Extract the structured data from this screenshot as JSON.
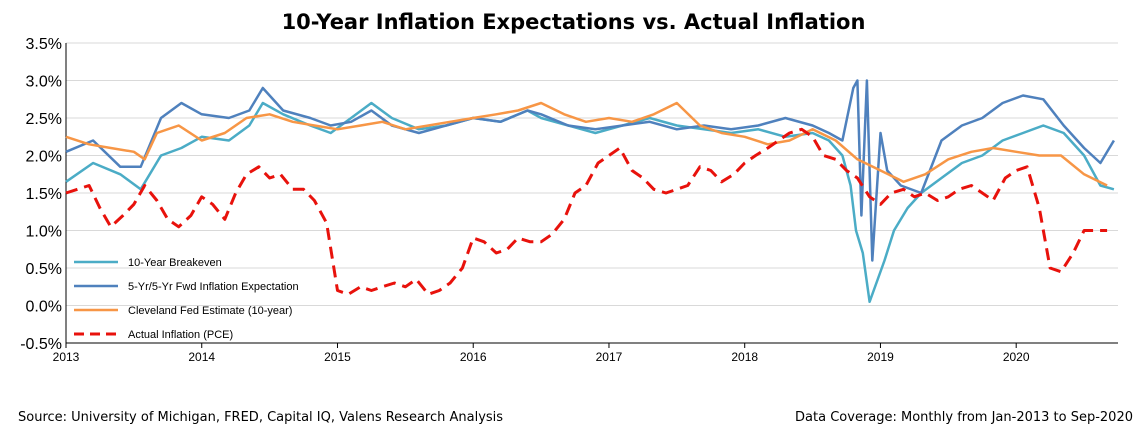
{
  "chart_data": {
    "type": "line",
    "title": "10-Year Inflation Expectations vs. Actual Inflation",
    "xlabel": "",
    "ylabel": "",
    "xlim": [
      2013.0,
      2020.75
    ],
    "ylim": [
      -0.5,
      3.5
    ],
    "x_ticks": [
      "2013",
      "2014",
      "2015",
      "2016",
      "2017",
      "2018",
      "2019",
      "2020"
    ],
    "y_ticks": [
      "3.5%",
      "3.0%",
      "2.5%",
      "2.0%",
      "1.5%",
      "1.0%",
      "0.5%",
      "0.0%",
      "-0.5%"
    ],
    "grid": "horizontal",
    "legend_position": "bottom-left",
    "series": [
      {
        "name": "10-Year Breakeven",
        "color": "#4bacc6",
        "style": "solid",
        "points": [
          [
            2013.0,
            1.65
          ],
          [
            2013.2,
            1.9
          ],
          [
            2013.4,
            1.75
          ],
          [
            2013.55,
            1.55
          ],
          [
            2013.7,
            2.0
          ],
          [
            2013.85,
            2.1
          ],
          [
            2014.0,
            2.25
          ],
          [
            2014.2,
            2.2
          ],
          [
            2014.35,
            2.4
          ],
          [
            2014.45,
            2.7
          ],
          [
            2014.6,
            2.55
          ],
          [
            2014.8,
            2.4
          ],
          [
            2014.95,
            2.3
          ],
          [
            2015.1,
            2.5
          ],
          [
            2015.25,
            2.7
          ],
          [
            2015.4,
            2.5
          ],
          [
            2015.6,
            2.35
          ],
          [
            2015.8,
            2.4
          ],
          [
            2016.0,
            2.5
          ],
          [
            2016.2,
            2.45
          ],
          [
            2016.4,
            2.6
          ],
          [
            2016.5,
            2.5
          ],
          [
            2016.7,
            2.4
          ],
          [
            2016.9,
            2.3
          ],
          [
            2017.1,
            2.4
          ],
          [
            2017.3,
            2.5
          ],
          [
            2017.5,
            2.4
          ],
          [
            2017.7,
            2.35
          ],
          [
            2017.9,
            2.3
          ],
          [
            2018.1,
            2.35
          ],
          [
            2018.3,
            2.25
          ],
          [
            2018.5,
            2.3
          ],
          [
            2018.62,
            2.2
          ],
          [
            2018.72,
            2.0
          ],
          [
            2018.78,
            1.6
          ],
          [
            2018.82,
            1.0
          ],
          [
            2018.87,
            0.7
          ],
          [
            2018.92,
            0.05
          ],
          [
            2018.97,
            0.3
          ],
          [
            2019.03,
            0.6
          ],
          [
            2019.1,
            1.0
          ],
          [
            2019.2,
            1.3
          ],
          [
            2019.3,
            1.5
          ],
          [
            2019.45,
            1.7
          ],
          [
            2019.6,
            1.9
          ],
          [
            2019.75,
            2.0
          ],
          [
            2019.9,
            2.2
          ],
          [
            2020.05,
            2.3
          ],
          [
            2020.2,
            2.4
          ],
          [
            2020.35,
            2.3
          ],
          [
            2020.5,
            2.0
          ],
          [
            2020.62,
            1.6
          ],
          [
            2020.72,
            1.55
          ]
        ]
      },
      {
        "name": "5-Yr/5-Yr Fwd Inflation Expectation",
        "color": "#4f81bd",
        "style": "solid",
        "points": [
          [
            2013.0,
            2.05
          ],
          [
            2013.2,
            2.2
          ],
          [
            2013.4,
            1.85
          ],
          [
            2013.55,
            1.85
          ],
          [
            2013.7,
            2.5
          ],
          [
            2013.85,
            2.7
          ],
          [
            2014.0,
            2.55
          ],
          [
            2014.2,
            2.5
          ],
          [
            2014.35,
            2.6
          ],
          [
            2014.45,
            2.9
          ],
          [
            2014.6,
            2.6
          ],
          [
            2014.8,
            2.5
          ],
          [
            2014.95,
            2.4
          ],
          [
            2015.1,
            2.45
          ],
          [
            2015.25,
            2.6
          ],
          [
            2015.4,
            2.4
          ],
          [
            2015.6,
            2.3
          ],
          [
            2015.8,
            2.4
          ],
          [
            2016.0,
            2.5
          ],
          [
            2016.2,
            2.45
          ],
          [
            2016.4,
            2.6
          ],
          [
            2016.5,
            2.55
          ],
          [
            2016.7,
            2.4
          ],
          [
            2016.9,
            2.35
          ],
          [
            2017.1,
            2.4
          ],
          [
            2017.3,
            2.45
          ],
          [
            2017.5,
            2.35
          ],
          [
            2017.7,
            2.4
          ],
          [
            2017.9,
            2.35
          ],
          [
            2018.1,
            2.4
          ],
          [
            2018.3,
            2.5
          ],
          [
            2018.5,
            2.4
          ],
          [
            2018.62,
            2.3
          ],
          [
            2018.72,
            2.2
          ],
          [
            2018.8,
            2.9
          ],
          [
            2018.83,
            3.0
          ],
          [
            2018.86,
            1.2
          ],
          [
            2018.9,
            3.0
          ],
          [
            2018.94,
            0.6
          ],
          [
            2019.0,
            2.3
          ],
          [
            2019.05,
            1.8
          ],
          [
            2019.15,
            1.6
          ],
          [
            2019.3,
            1.5
          ],
          [
            2019.45,
            2.2
          ],
          [
            2019.6,
            2.4
          ],
          [
            2019.75,
            2.5
          ],
          [
            2019.9,
            2.7
          ],
          [
            2020.05,
            2.8
          ],
          [
            2020.2,
            2.75
          ],
          [
            2020.35,
            2.4
          ],
          [
            2020.5,
            2.1
          ],
          [
            2020.62,
            1.9
          ],
          [
            2020.72,
            2.2
          ]
        ]
      },
      {
        "name": "Cleveland Fed Estimate (10-year)",
        "color": "#f79646",
        "style": "solid",
        "points": [
          [
            2013.0,
            2.25
          ],
          [
            2013.17,
            2.15
          ],
          [
            2013.33,
            2.1
          ],
          [
            2013.5,
            2.05
          ],
          [
            2013.58,
            1.95
          ],
          [
            2013.67,
            2.3
          ],
          [
            2013.83,
            2.4
          ],
          [
            2014.0,
            2.2
          ],
          [
            2014.17,
            2.3
          ],
          [
            2014.33,
            2.5
          ],
          [
            2014.5,
            2.55
          ],
          [
            2014.67,
            2.45
          ],
          [
            2014.83,
            2.4
          ],
          [
            2015.0,
            2.35
          ],
          [
            2015.17,
            2.4
          ],
          [
            2015.33,
            2.45
          ],
          [
            2015.5,
            2.35
          ],
          [
            2015.67,
            2.4
          ],
          [
            2015.83,
            2.45
          ],
          [
            2016.0,
            2.5
          ],
          [
            2016.17,
            2.55
          ],
          [
            2016.33,
            2.6
          ],
          [
            2016.5,
            2.7
          ],
          [
            2016.67,
            2.55
          ],
          [
            2016.83,
            2.45
          ],
          [
            2017.0,
            2.5
          ],
          [
            2017.17,
            2.45
          ],
          [
            2017.33,
            2.55
          ],
          [
            2017.5,
            2.7
          ],
          [
            2017.67,
            2.4
          ],
          [
            2017.83,
            2.3
          ],
          [
            2018.0,
            2.25
          ],
          [
            2018.17,
            2.15
          ],
          [
            2018.33,
            2.2
          ],
          [
            2018.5,
            2.35
          ],
          [
            2018.67,
            2.2
          ],
          [
            2018.83,
            1.95
          ],
          [
            2019.0,
            1.8
          ],
          [
            2019.17,
            1.65
          ],
          [
            2019.33,
            1.75
          ],
          [
            2019.5,
            1.95
          ],
          [
            2019.67,
            2.05
          ],
          [
            2019.83,
            2.1
          ],
          [
            2020.0,
            2.05
          ],
          [
            2020.17,
            2.0
          ],
          [
            2020.33,
            2.0
          ],
          [
            2020.5,
            1.75
          ],
          [
            2020.67,
            1.6
          ]
        ]
      },
      {
        "name": "Actual Inflation (PCE)",
        "color": "#e8120c",
        "style": "dashed",
        "points": [
          [
            2013.0,
            1.5
          ],
          [
            2013.17,
            1.6
          ],
          [
            2013.25,
            1.3
          ],
          [
            2013.33,
            1.05
          ],
          [
            2013.42,
            1.2
          ],
          [
            2013.5,
            1.35
          ],
          [
            2013.58,
            1.6
          ],
          [
            2013.67,
            1.4
          ],
          [
            2013.75,
            1.15
          ],
          [
            2013.83,
            1.05
          ],
          [
            2013.92,
            1.2
          ],
          [
            2014.0,
            1.45
          ],
          [
            2014.08,
            1.35
          ],
          [
            2014.17,
            1.15
          ],
          [
            2014.25,
            1.5
          ],
          [
            2014.33,
            1.75
          ],
          [
            2014.42,
            1.85
          ],
          [
            2014.5,
            1.7
          ],
          [
            2014.58,
            1.75
          ],
          [
            2014.67,
            1.55
          ],
          [
            2014.75,
            1.55
          ],
          [
            2014.83,
            1.4
          ],
          [
            2014.92,
            1.1
          ],
          [
            2015.0,
            0.2
          ],
          [
            2015.08,
            0.15
          ],
          [
            2015.17,
            0.25
          ],
          [
            2015.25,
            0.2
          ],
          [
            2015.33,
            0.25
          ],
          [
            2015.42,
            0.3
          ],
          [
            2015.5,
            0.25
          ],
          [
            2015.58,
            0.35
          ],
          [
            2015.67,
            0.15
          ],
          [
            2015.75,
            0.2
          ],
          [
            2015.83,
            0.3
          ],
          [
            2015.92,
            0.5
          ],
          [
            2016.0,
            0.9
          ],
          [
            2016.08,
            0.85
          ],
          [
            2016.17,
            0.7
          ],
          [
            2016.25,
            0.75
          ],
          [
            2016.33,
            0.9
          ],
          [
            2016.42,
            0.85
          ],
          [
            2016.5,
            0.85
          ],
          [
            2016.58,
            0.95
          ],
          [
            2016.67,
            1.15
          ],
          [
            2016.75,
            1.5
          ],
          [
            2016.83,
            1.6
          ],
          [
            2016.92,
            1.9
          ],
          [
            2017.0,
            2.0
          ],
          [
            2017.08,
            2.1
          ],
          [
            2017.17,
            1.8
          ],
          [
            2017.25,
            1.7
          ],
          [
            2017.33,
            1.55
          ],
          [
            2017.42,
            1.5
          ],
          [
            2017.5,
            1.55
          ],
          [
            2017.58,
            1.6
          ],
          [
            2017.67,
            1.85
          ],
          [
            2017.75,
            1.8
          ],
          [
            2017.83,
            1.65
          ],
          [
            2017.92,
            1.75
          ],
          [
            2018.0,
            1.9
          ],
          [
            2018.08,
            2.0
          ],
          [
            2018.17,
            2.1
          ],
          [
            2018.25,
            2.2
          ],
          [
            2018.33,
            2.3
          ],
          [
            2018.42,
            2.35
          ],
          [
            2018.5,
            2.25
          ],
          [
            2018.58,
            2.0
          ],
          [
            2018.67,
            1.95
          ],
          [
            2018.75,
            1.8
          ],
          [
            2018.83,
            1.7
          ],
          [
            2018.92,
            1.45
          ],
          [
            2019.0,
            1.35
          ],
          [
            2019.08,
            1.5
          ],
          [
            2019.17,
            1.55
          ],
          [
            2019.25,
            1.45
          ],
          [
            2019.33,
            1.5
          ],
          [
            2019.42,
            1.4
          ],
          [
            2019.5,
            1.45
          ],
          [
            2019.58,
            1.55
          ],
          [
            2019.67,
            1.6
          ],
          [
            2019.75,
            1.5
          ],
          [
            2019.83,
            1.4
          ],
          [
            2019.92,
            1.7
          ],
          [
            2020.0,
            1.8
          ],
          [
            2020.08,
            1.85
          ],
          [
            2020.17,
            1.3
          ],
          [
            2020.25,
            0.5
          ],
          [
            2020.33,
            0.45
          ],
          [
            2020.42,
            0.7
          ],
          [
            2020.5,
            1.0
          ],
          [
            2020.58,
            1.0
          ],
          [
            2020.67,
            1.0
          ]
        ]
      }
    ]
  },
  "footer": {
    "source": "Source: University of Michigan, FRED, Capital IQ, Valens Research Analysis",
    "coverage": "Data Coverage: Monthly from Jan-2013 to Sep-2020"
  }
}
